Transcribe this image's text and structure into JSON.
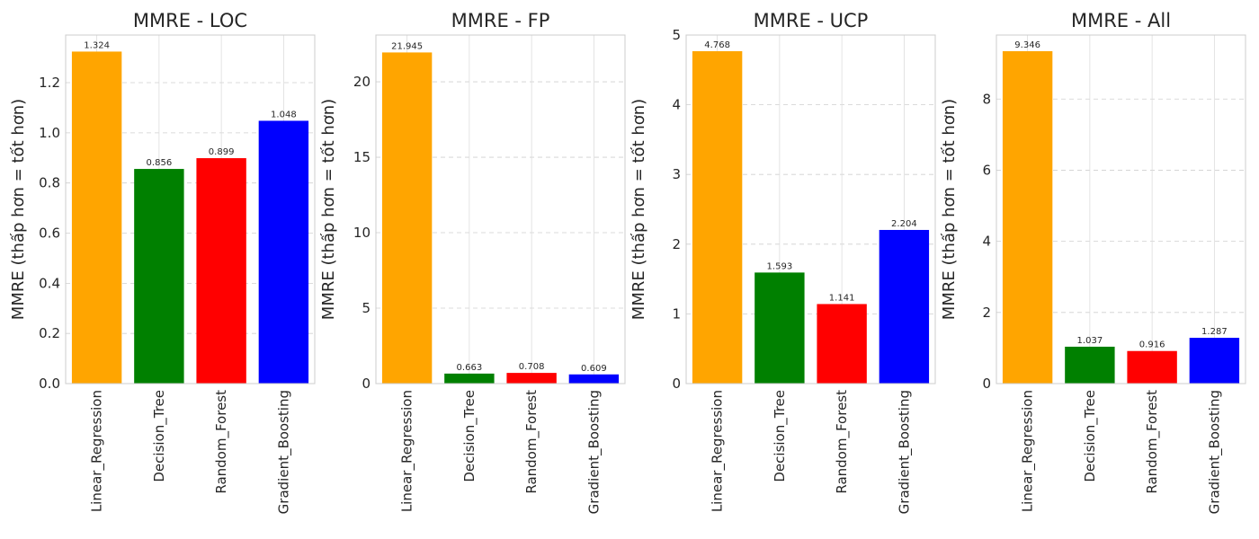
{
  "ylabel": "MMRE (thấp hơn = tốt hơn)",
  "colors": [
    "#ffa500",
    "#008000",
    "#ff0000",
    "#0000ff"
  ],
  "chart_data": [
    {
      "type": "bar",
      "title": "MMRE - LOC",
      "categories": [
        "Linear_Regression",
        "Decision_Tree",
        "Random_Forest",
        "Gradient_Boosting"
      ],
      "values": [
        1.324,
        0.856,
        0.899,
        1.048
      ],
      "value_labels": [
        "1.324",
        "0.856",
        "0.899",
        "1.048"
      ],
      "ylim": [
        0,
        1.39
      ],
      "yticks": [
        0.0,
        0.2,
        0.4,
        0.6,
        0.8,
        1.0,
        1.2
      ],
      "ytick_labels": [
        "0.0",
        "0.2",
        "0.4",
        "0.6",
        "0.8",
        "1.0",
        "1.2"
      ],
      "ylabel": "MMRE (thấp hơn = tốt hơn)",
      "grid": true
    },
    {
      "type": "bar",
      "title": "MMRE - FP",
      "categories": [
        "Linear_Regression",
        "Decision_Tree",
        "Random_Forest",
        "Gradient_Boosting"
      ],
      "values": [
        21.945,
        0.663,
        0.708,
        0.609
      ],
      "value_labels": [
        "21.945",
        "0.663",
        "0.708",
        "0.609"
      ],
      "ylim": [
        0,
        23.1
      ],
      "yticks": [
        0,
        5,
        10,
        15,
        20
      ],
      "ytick_labels": [
        "0",
        "5",
        "10",
        "15",
        "20"
      ],
      "ylabel": "MMRE (thấp hơn = tốt hơn)",
      "grid": true
    },
    {
      "type": "bar",
      "title": "MMRE - UCP",
      "categories": [
        "Linear_Regression",
        "Decision_Tree",
        "Random_Forest",
        "Gradient_Boosting"
      ],
      "values": [
        4.768,
        1.593,
        1.141,
        2.204
      ],
      "value_labels": [
        "4.768",
        "1.593",
        "1.141",
        "2.204"
      ],
      "ylim": [
        0,
        5.0
      ],
      "yticks": [
        0,
        1,
        2,
        3,
        4,
        5
      ],
      "ytick_labels": [
        "0",
        "1",
        "2",
        "3",
        "4",
        "5"
      ],
      "ylabel": "MMRE (thấp hơn = tốt hơn)",
      "grid": true
    },
    {
      "type": "bar",
      "title": "MMRE - All",
      "categories": [
        "Linear_Regression",
        "Decision_Tree",
        "Random_Forest",
        "Gradient_Boosting"
      ],
      "values": [
        9.346,
        1.037,
        0.916,
        1.287
      ],
      "value_labels": [
        "9.346",
        "1.037",
        "0.916",
        "1.287"
      ],
      "ylim": [
        0,
        9.8
      ],
      "yticks": [
        0,
        2,
        4,
        6,
        8
      ],
      "ytick_labels": [
        "0",
        "2",
        "4",
        "6",
        "8"
      ],
      "ylabel": "MMRE (thấp hơn = tốt hơn)",
      "grid": true
    }
  ]
}
